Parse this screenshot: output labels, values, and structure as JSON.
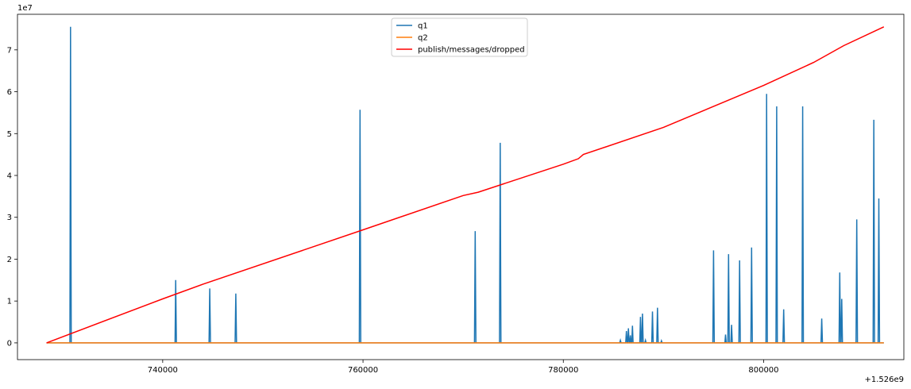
{
  "chart_data": {
    "type": "line",
    "title": "",
    "xlabel": "",
    "ylabel": "",
    "x_offset_label": "+1.526e9",
    "y_scale_label": "1e7",
    "xlim": [
      1526725500,
      1526814000
    ],
    "ylim": [
      -4000000,
      78500000
    ],
    "x_ticks": [
      1526740000,
      1526760000,
      1526780000,
      1526800000
    ],
    "x_tick_labels": [
      "740000",
      "760000",
      "780000",
      "800000"
    ],
    "y_ticks": [
      0,
      10000000,
      20000000,
      30000000,
      40000000,
      50000000,
      60000000,
      70000000
    ],
    "y_tick_labels": [
      "0",
      "1",
      "2",
      "3",
      "4",
      "5",
      "6",
      "7"
    ],
    "grid": false,
    "legend_position": "upper-center",
    "series": [
      {
        "name": "q1",
        "color": "#1f77b4",
        "spikes": [
          {
            "x": 1526730800,
            "y": 75500000
          },
          {
            "x": 1526741300,
            "y": 15000000
          },
          {
            "x": 1526744700,
            "y": 13000000
          },
          {
            "x": 1526747300,
            "y": 11800000
          },
          {
            "x": 1526759700,
            "y": 55700000
          },
          {
            "x": 1526771200,
            "y": 26700000
          },
          {
            "x": 1526773700,
            "y": 47800000
          },
          {
            "x": 1526785700,
            "y": 600000
          },
          {
            "x": 1526786300,
            "y": 2800000
          },
          {
            "x": 1526786500,
            "y": 3500000
          },
          {
            "x": 1526786700,
            "y": 1800000
          },
          {
            "x": 1526786900,
            "y": 4100000
          },
          {
            "x": 1526787700,
            "y": 6200000
          },
          {
            "x": 1526787900,
            "y": 7000000
          },
          {
            "x": 1526788200,
            "y": 600000
          },
          {
            "x": 1526788900,
            "y": 7500000
          },
          {
            "x": 1526789400,
            "y": 8400000
          },
          {
            "x": 1526789800,
            "y": 500000
          },
          {
            "x": 1526795000,
            "y": 22100000
          },
          {
            "x": 1526796200,
            "y": 2000000
          },
          {
            "x": 1526796500,
            "y": 21200000
          },
          {
            "x": 1526796800,
            "y": 4300000
          },
          {
            "x": 1526797600,
            "y": 19700000
          },
          {
            "x": 1526798800,
            "y": 22800000
          },
          {
            "x": 1526800300,
            "y": 59500000
          },
          {
            "x": 1526801300,
            "y": 56500000
          },
          {
            "x": 1526802000,
            "y": 8000000
          },
          {
            "x": 1526803900,
            "y": 56500000
          },
          {
            "x": 1526805800,
            "y": 5800000
          },
          {
            "x": 1526807600,
            "y": 16800000
          },
          {
            "x": 1526807800,
            "y": 10500000
          },
          {
            "x": 1526809300,
            "y": 29500000
          },
          {
            "x": 1526811000,
            "y": 53300000
          },
          {
            "x": 1526811500,
            "y": 34500000
          }
        ]
      },
      {
        "name": "q2",
        "color": "#ff7f0e",
        "x": [
          1526728400,
          1526812000
        ],
        "y": [
          0,
          0
        ]
      },
      {
        "name": "publish/messages/dropped",
        "color": "#ff0000",
        "x": [
          1526728400,
          1526740000,
          1526744000,
          1526760000,
          1526770000,
          1526771500,
          1526780000,
          1526781500,
          1526782000,
          1526790000,
          1526800000,
          1526805000,
          1526808000,
          1526812000
        ],
        "y": [
          0,
          10500000,
          14000000,
          27000000,
          35200000,
          36000000,
          42700000,
          44000000,
          45000000,
          51500000,
          61500000,
          67000000,
          71000000,
          75500000
        ]
      }
    ]
  }
}
